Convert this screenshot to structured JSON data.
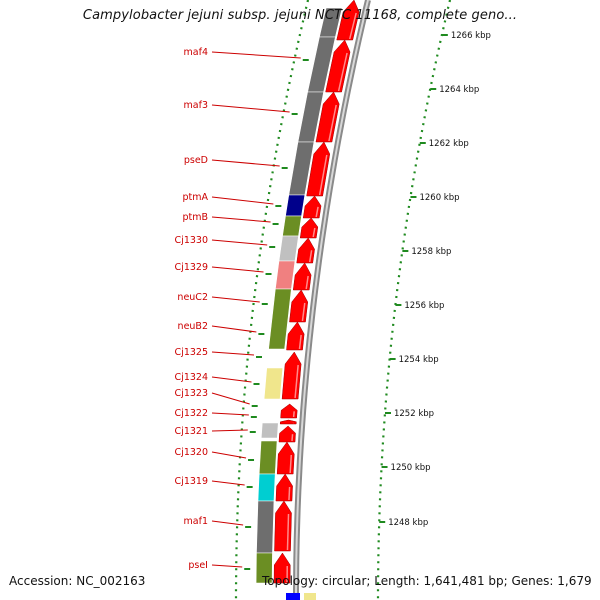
{
  "title": "Campylobacter jejuni subsp. jejuni NCTC 11168, complete geno...",
  "footer": {
    "accession": "Accession: NC_002163",
    "topology": "Topology: circular; Length: 1,641,481 bp; Genes: 1,679"
  },
  "colors": {
    "label": "#cc0000",
    "forward_cds": "#ff0000",
    "backbone": "#8a8a8a",
    "dots": "#1f8a1f",
    "cog_gray": "#6e6e6e",
    "cog_olive": "#6b8e23",
    "cog_light_gray": "#c0c0c0",
    "cog_salmon": "#f08080",
    "cog_khaki": "#f0e68c",
    "cog_cyan": "#00ced1",
    "cog_navy": "#00008b"
  },
  "scale_ticks": [
    {
      "label": "1266 kbp"
    },
    {
      "label": "1264 kbp"
    },
    {
      "label": "1262 kbp"
    },
    {
      "label": "1260 kbp"
    },
    {
      "label": "1258 kbp"
    },
    {
      "label": "1256 kbp"
    },
    {
      "label": "1254 kbp"
    },
    {
      "label": "1252 kbp"
    },
    {
      "label": "1250 kbp"
    },
    {
      "label": "1248 kbp"
    }
  ],
  "genes": [
    {
      "label": "maf4"
    },
    {
      "label": "maf3"
    },
    {
      "label": "pseD"
    },
    {
      "label": "ptmA"
    },
    {
      "label": "ptmB"
    },
    {
      "label": "Cj1330"
    },
    {
      "label": "Cj1329"
    },
    {
      "label": "neuC2"
    },
    {
      "label": "neuB2"
    },
    {
      "label": "Cj1325"
    },
    {
      "label": "Cj1324"
    },
    {
      "label": "Cj1323"
    },
    {
      "label": "Cj1322"
    },
    {
      "label": "Cj1321"
    },
    {
      "label": "Cj1320"
    },
    {
      "label": "Cj1319"
    },
    {
      "label": "maf1"
    },
    {
      "label": "pseI"
    }
  ]
}
